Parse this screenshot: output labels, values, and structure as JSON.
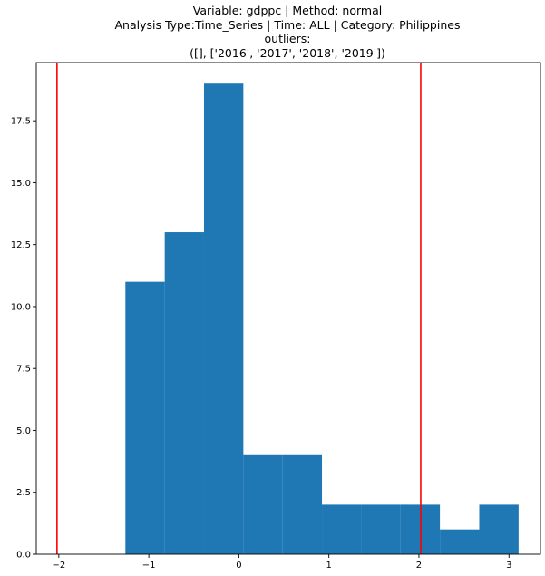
{
  "chart_data": {
    "type": "bar",
    "title_lines": [
      "Variable: gdppc | Method: normal",
      "Analysis Type:Time_Series | Time: ALL | Category: Philippines",
      "outliers:",
      "([], ['2016', '2017', '2018', '2019'])"
    ],
    "xlabel": "",
    "ylabel": "",
    "xlim": [
      -2.25,
      3.35
    ],
    "ylim": [
      0,
      19.85
    ],
    "x_ticks": [
      -2,
      -1,
      0,
      1,
      2,
      3
    ],
    "x_tick_labels": [
      "−2",
      "−1",
      "0",
      "1",
      "2",
      "3"
    ],
    "y_ticks": [
      0,
      2.5,
      5,
      7.5,
      10,
      12.5,
      15,
      17.5
    ],
    "y_tick_labels": [
      "0.0",
      "2.5",
      "5.0",
      "7.5",
      "10.0",
      "12.5",
      "15.0",
      "17.5"
    ],
    "bins": [
      {
        "x0": -1.26,
        "x1": -0.823,
        "count": 11
      },
      {
        "x0": -0.823,
        "x1": -0.387,
        "count": 13
      },
      {
        "x0": -0.387,
        "x1": 0.05,
        "count": 19
      },
      {
        "x0": 0.05,
        "x1": 0.487,
        "count": 4
      },
      {
        "x0": 0.487,
        "x1": 0.923,
        "count": 4
      },
      {
        "x0": 0.923,
        "x1": 1.36,
        "count": 2
      },
      {
        "x0": 1.36,
        "x1": 1.797,
        "count": 2
      },
      {
        "x0": 1.797,
        "x1": 2.233,
        "count": 2
      },
      {
        "x0": 2.233,
        "x1": 2.67,
        "count": 1
      },
      {
        "x0": 2.67,
        "x1": 3.107,
        "count": 2
      }
    ],
    "bar_color": "#1f77b4",
    "vertical_lines": [
      {
        "x": -2.02,
        "color": "#ff0000"
      },
      {
        "x": 2.02,
        "color": "#ff0000"
      }
    ],
    "grid": false,
    "legend": "none"
  }
}
